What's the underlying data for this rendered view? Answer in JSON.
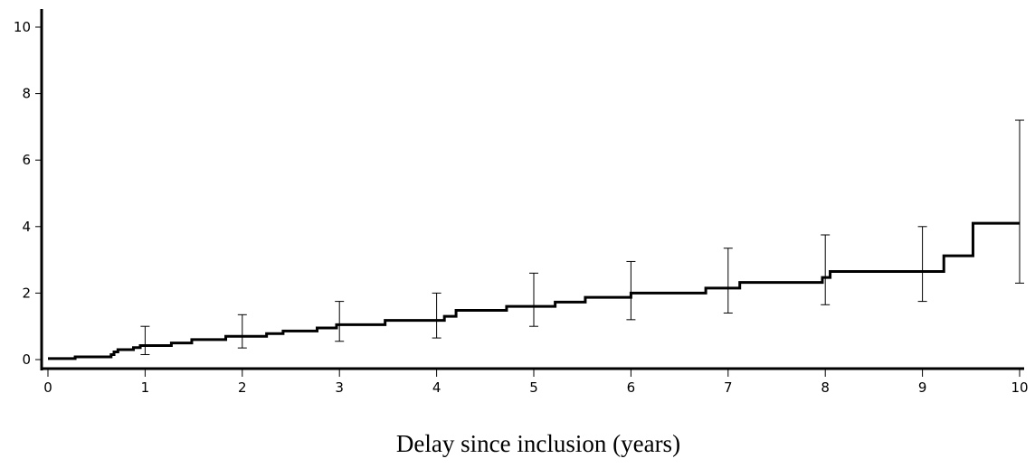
{
  "chart_data": {
    "type": "line",
    "step": true,
    "title": "",
    "xlabel": "Delay since inclusion (years)",
    "ylabel": "",
    "xlim": [
      0,
      10
    ],
    "ylim": [
      0,
      10
    ],
    "xticks": [
      "0",
      "1",
      "2",
      "3",
      "4",
      "5",
      "6",
      "7",
      "8",
      "9",
      "10"
    ],
    "yticks": [
      "0",
      "2",
      "4",
      "6",
      "8",
      "10"
    ],
    "grid": false,
    "series": [
      {
        "x": [
          0,
          0.28,
          0.65,
          0.68,
          0.72,
          0.88,
          0.95,
          1.27,
          1.48,
          1.83,
          2.25,
          2.42,
          2.77,
          2.97,
          3.47,
          4.08,
          4.2,
          4.72,
          5.22,
          5.53,
          6.0,
          6.77,
          7.12,
          7.97,
          8.05,
          9.22,
          9.52,
          10.0
        ],
        "y": [
          0.03,
          0.08,
          0.15,
          0.23,
          0.3,
          0.36,
          0.42,
          0.5,
          0.6,
          0.7,
          0.78,
          0.86,
          0.95,
          1.05,
          1.18,
          1.3,
          1.48,
          1.6,
          1.73,
          1.87,
          2.0,
          2.15,
          2.32,
          2.47,
          2.65,
          3.12,
          4.1,
          4.1
        ]
      }
    ],
    "error_bars": [
      {
        "x": 1,
        "low": 0.15,
        "high": 1.0
      },
      {
        "x": 2,
        "low": 0.35,
        "high": 1.35
      },
      {
        "x": 3,
        "low": 0.55,
        "high": 1.75
      },
      {
        "x": 4,
        "low": 0.65,
        "high": 2.0
      },
      {
        "x": 5,
        "low": 1.0,
        "high": 2.6
      },
      {
        "x": 6,
        "low": 1.2,
        "high": 2.95
      },
      {
        "x": 7,
        "low": 1.4,
        "high": 3.35
      },
      {
        "x": 8,
        "low": 1.65,
        "high": 3.75
      },
      {
        "x": 9,
        "low": 1.75,
        "high": 4.0
      },
      {
        "x": 10,
        "low": 2.3,
        "high": 7.2
      }
    ],
    "colors": {
      "line": "#000000",
      "axis": "#000000"
    }
  }
}
